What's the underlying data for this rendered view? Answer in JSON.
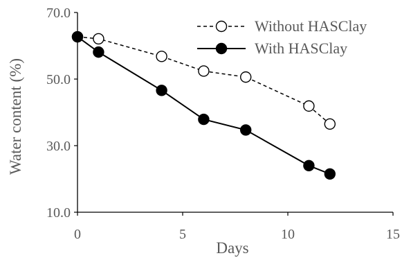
{
  "chart_data": {
    "type": "line",
    "xlabel": "Days",
    "ylabel": "Water content (%)",
    "xlim": [
      0,
      15
    ],
    "ylim": [
      10,
      70
    ],
    "xticks": [
      "0",
      "5",
      "10",
      "15"
    ],
    "yticks": [
      "10.0",
      "30.0",
      "50.0",
      "70.0"
    ],
    "grid": false,
    "legend_position": "top-right",
    "series": [
      {
        "name": "Without HASClay",
        "style": "dashed",
        "marker": "open-circle",
        "color": "#000000",
        "x": [
          0,
          1,
          4,
          6,
          8,
          11,
          12
        ],
        "y": [
          62.7,
          62.1,
          56.8,
          52.4,
          50.6,
          41.9,
          36.5
        ]
      },
      {
        "name": "With HASClay",
        "style": "solid",
        "marker": "filled-circle",
        "color": "#000000",
        "x": [
          0,
          1,
          4,
          6,
          8,
          11,
          12
        ],
        "y": [
          62.7,
          58.1,
          46.6,
          37.9,
          34.7,
          24.0,
          21.5
        ]
      }
    ]
  }
}
